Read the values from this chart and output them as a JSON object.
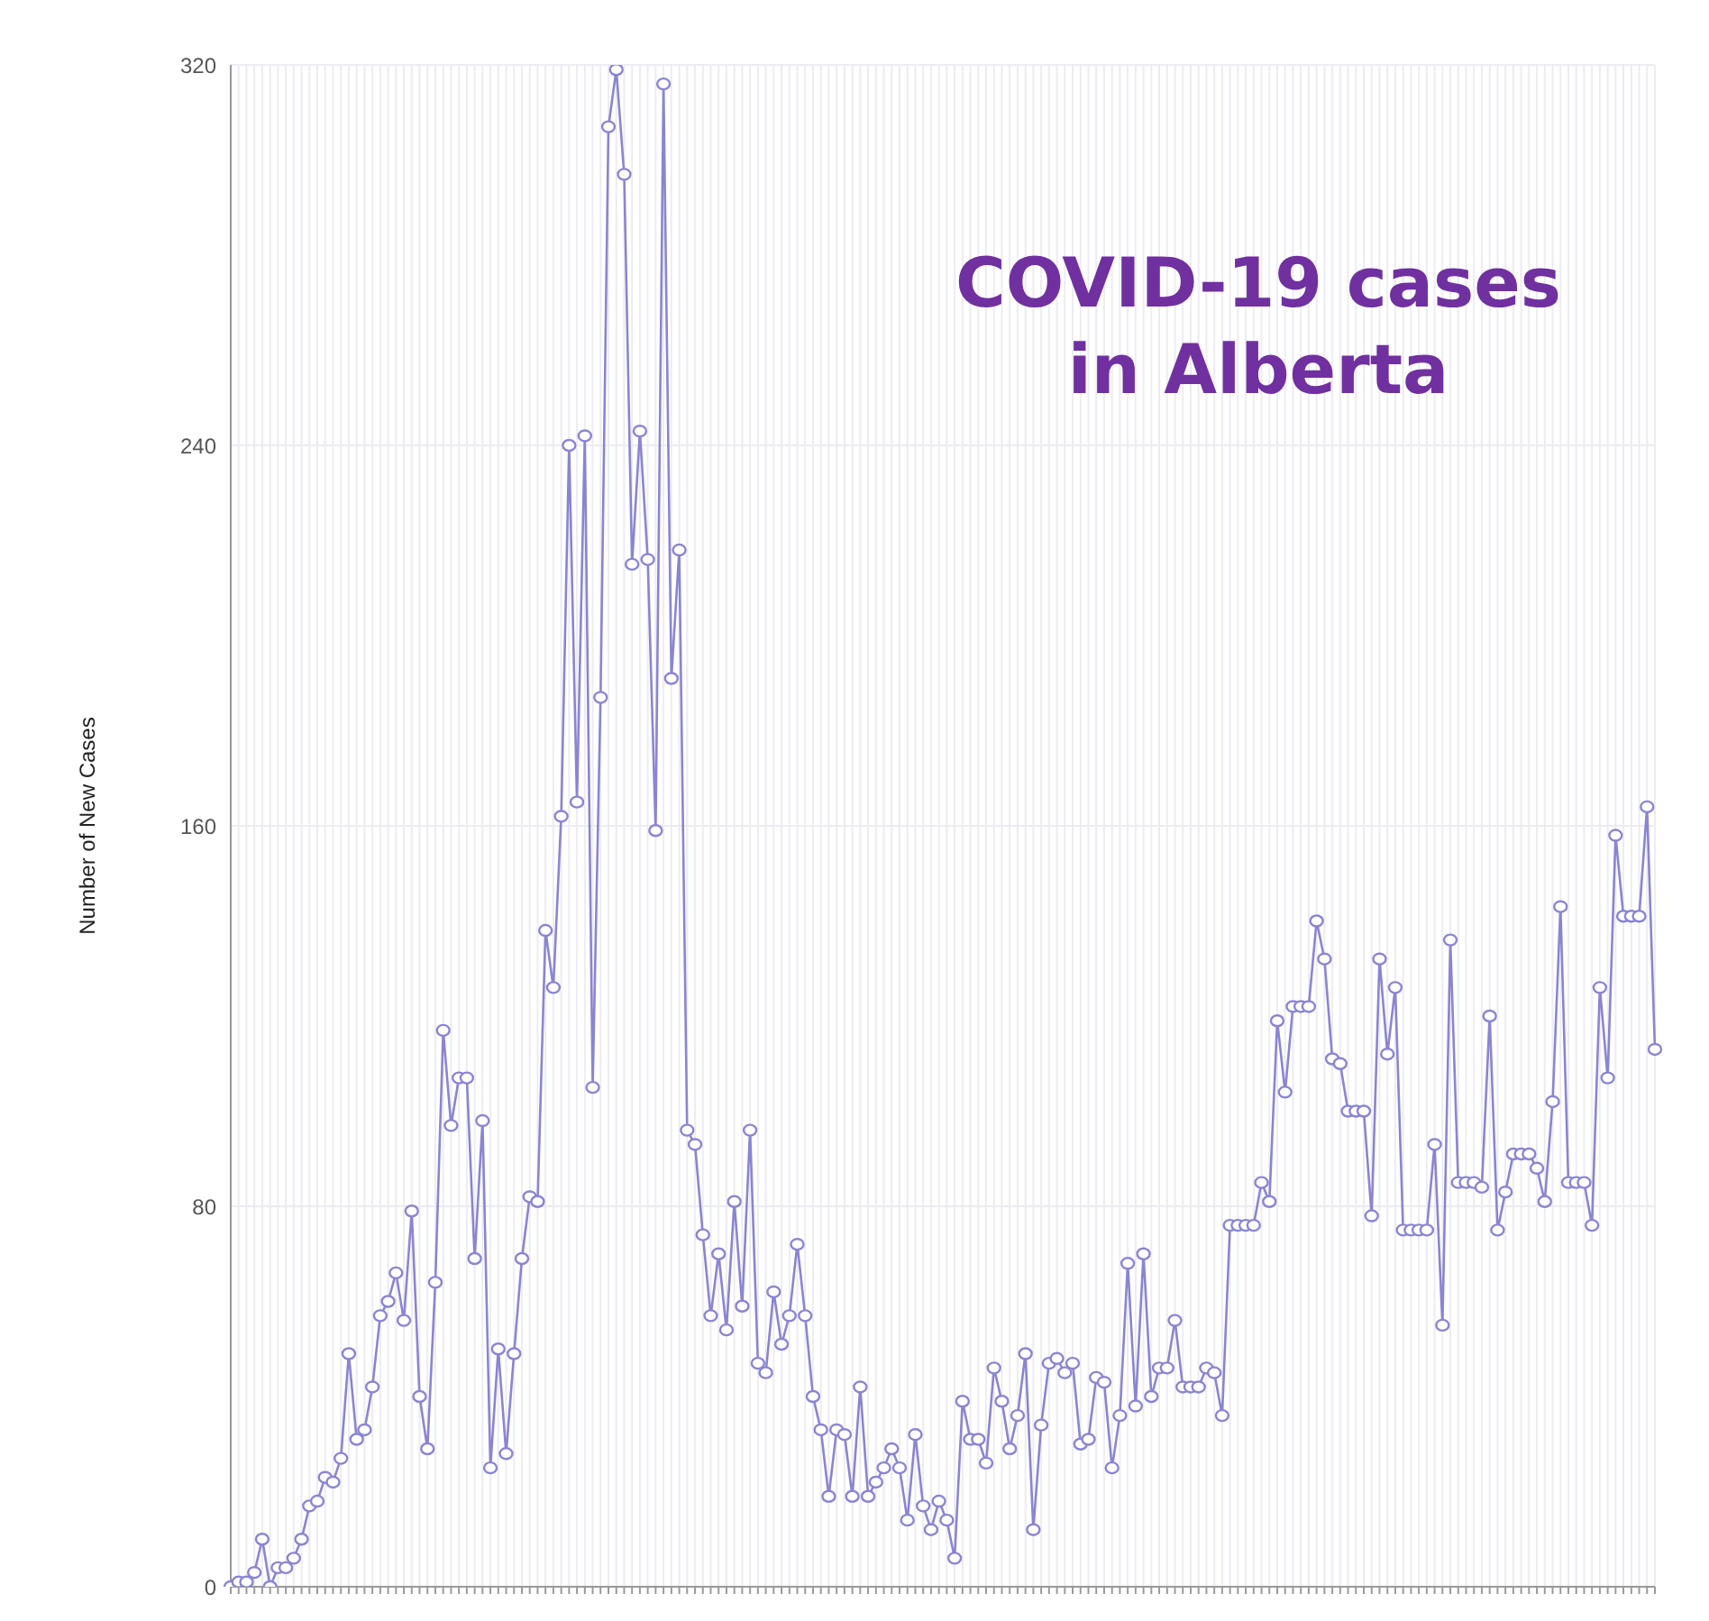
{
  "chart_data": {
    "type": "line",
    "title": "COVID-19 cases\nin Alberta",
    "ylabel": "Number of New Cases",
    "categories": [
      null,
      null,
      null,
      null,
      null,
      null,
      null,
      null,
      null,
      null,
      null,
      null,
      null,
      null,
      null,
      null,
      null,
      null,
      null,
      null,
      null,
      null,
      null,
      null,
      null,
      null,
      null,
      null,
      null,
      null,
      null,
      null,
      null,
      null,
      null,
      null,
      null,
      null,
      null,
      null,
      null,
      null,
      null,
      null,
      null,
      null,
      null,
      null,
      null,
      null,
      null,
      null,
      null,
      null,
      null,
      null,
      null,
      null,
      null,
      null,
      null,
      null,
      null,
      null,
      null,
      null,
      null,
      null,
      null,
      null,
      null,
      null,
      null,
      null,
      null,
      null,
      null,
      null,
      null,
      null,
      null,
      null,
      null,
      null,
      null,
      null,
      null,
      null,
      null,
      null,
      null,
      null,
      null,
      null,
      null,
      null,
      null,
      null,
      null,
      null,
      null,
      null,
      null,
      null,
      null,
      null,
      null,
      null,
      null,
      null,
      null,
      null,
      null,
      null,
      null,
      null,
      null,
      null,
      null,
      null,
      null,
      null,
      null,
      null,
      null,
      null,
      null,
      null,
      null,
      null,
      null,
      null,
      null,
      null,
      null,
      null,
      null,
      null,
      null,
      null,
      null,
      null,
      null,
      null,
      null,
      null,
      null,
      null,
      null,
      null,
      null,
      null,
      null,
      null,
      null,
      null,
      null,
      null,
      null,
      null,
      null,
      null,
      null,
      null,
      null,
      null,
      null,
      null,
      null,
      null,
      null,
      null,
      null,
      null,
      null,
      null,
      null,
      null,
      null,
      null,
      null,
      null
    ],
    "series": [
      {
        "color": "#8a85d2",
        "values": [
          0,
          1,
          1,
          3,
          10,
          0,
          4,
          4,
          6,
          10,
          17,
          18,
          23,
          22,
          27,
          49,
          31,
          33,
          42,
          57,
          60,
          66,
          56,
          79,
          40,
          29,
          64,
          117,
          97,
          107,
          107,
          69,
          98,
          25,
          50,
          28,
          49,
          69,
          82,
          81,
          138,
          126,
          162,
          240,
          165,
          242,
          105,
          187,
          307,
          319,
          297,
          215,
          243,
          216,
          159,
          316,
          191,
          218,
          96,
          93,
          74,
          57,
          70,
          54,
          81,
          59,
          96,
          47,
          45,
          62,
          51,
          57,
          72,
          57,
          40,
          33,
          19,
          33,
          32,
          19,
          42,
          19,
          22,
          25,
          29,
          25,
          14,
          32,
          17,
          12,
          18,
          14,
          6,
          39,
          31,
          31,
          26,
          46,
          39,
          29,
          36,
          49,
          12,
          34,
          47,
          48,
          45,
          47,
          30,
          31,
          44,
          43,
          25,
          36,
          68,
          38,
          70,
          40,
          46,
          46,
          56,
          42,
          42,
          42,
          46,
          45,
          36,
          76,
          76,
          76,
          76,
          85,
          81,
          119,
          104,
          122,
          122,
          122,
          140,
          132,
          111,
          110,
          100,
          100,
          100,
          78,
          132,
          112,
          126,
          75,
          75,
          75,
          75,
          93,
          55,
          136,
          85,
          85,
          85,
          84,
          120,
          75,
          83,
          91,
          91,
          91,
          88,
          81,
          102,
          143,
          85,
          85,
          85,
          76,
          126,
          107,
          158,
          141,
          141,
          141,
          164,
          113
        ]
      }
    ],
    "ylim": [
      0,
      320
    ],
    "yticks": [
      0,
      80,
      160,
      240,
      320
    ],
    "grid": true,
    "marker": "circle",
    "line_style": "solid",
    "tick_labels": "y"
  }
}
